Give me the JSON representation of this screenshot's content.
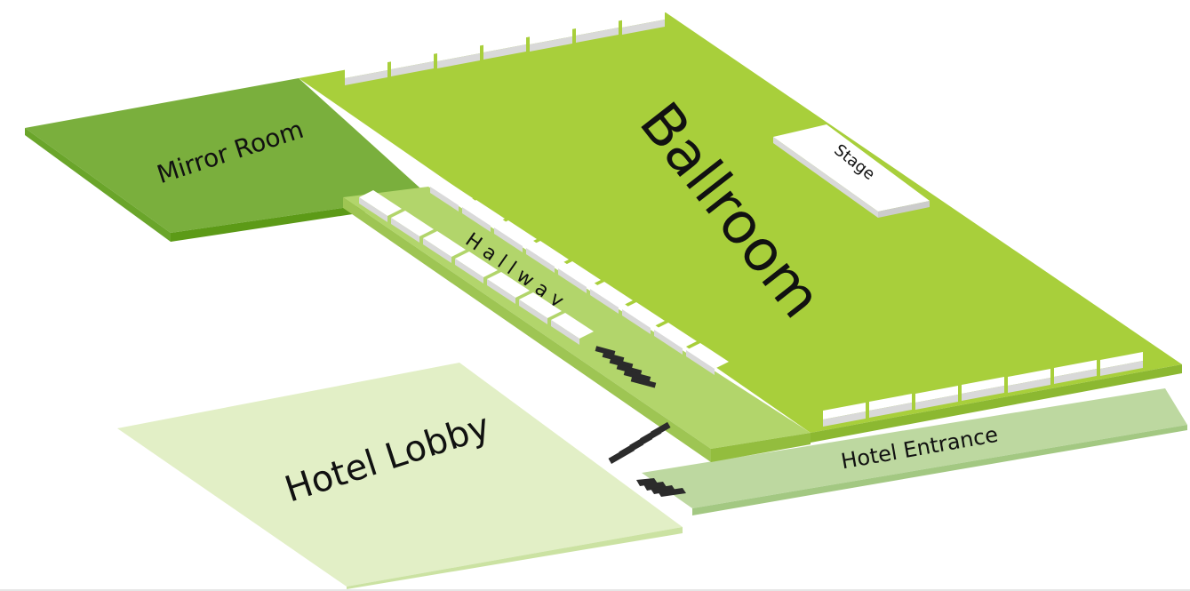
{
  "floorplan": {
    "rooms": {
      "mirror_room": {
        "label": "Mirror Room",
        "color": "#7aaf3d",
        "edge_color": "#5c9a17"
      },
      "ballroom": {
        "label": "Ballroom",
        "color": "#a8cf3b",
        "edge_color": "#8cb831"
      },
      "hallway": {
        "label": "H a l l w a y",
        "color": "#b2d56b",
        "edge_color": "#93bd3e"
      },
      "hotel_lobby": {
        "label": "Hotel Lobby",
        "color": "#e2efc6",
        "edge_color": "#cbe2a2"
      },
      "hotel_entrance": {
        "label": "Hotel Entrance",
        "color": "#bdd8a0",
        "edge_color": "#a3c882"
      },
      "stage": {
        "label": "Stage",
        "color": "#ffffff"
      }
    },
    "stairs_color": "#2b2b2b",
    "table_color": "#ffffff"
  }
}
